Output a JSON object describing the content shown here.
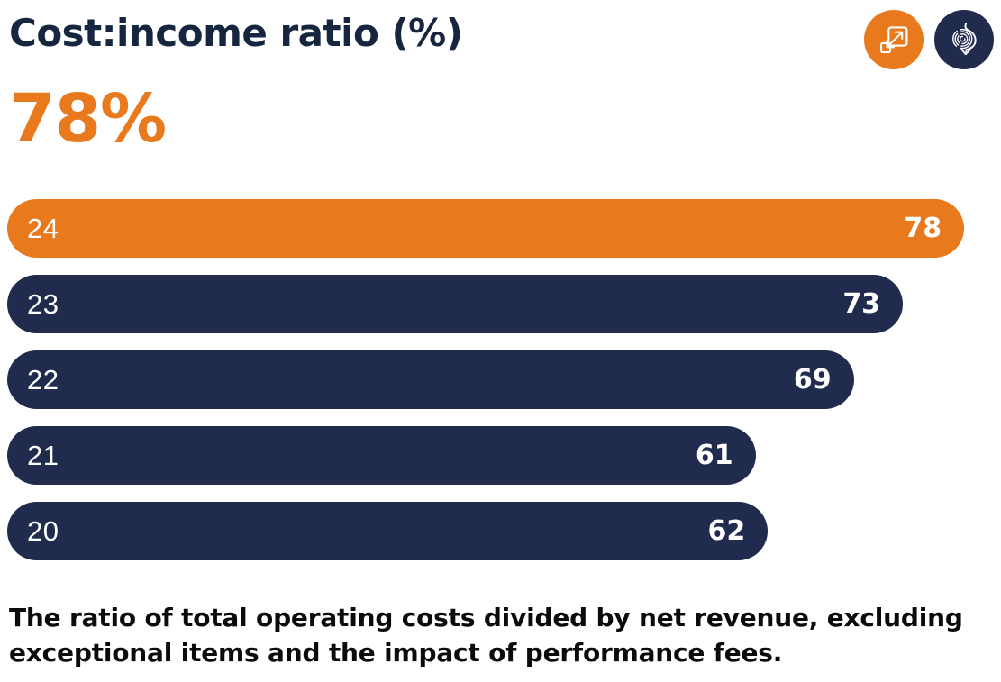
{
  "header": {
    "title": "Cost:income ratio (%)",
    "headline_value": "78%"
  },
  "colors": {
    "accent": "#E8791D",
    "primary": "#202B4D",
    "title": "#16263F",
    "text": "#0B0B0C",
    "bar_text": "#FFFFFF"
  },
  "chart_data": {
    "type": "bar",
    "orientation": "horizontal",
    "title": "Cost:income ratio (%)",
    "categories": [
      "24",
      "23",
      "22",
      "21",
      "20"
    ],
    "values": [
      78,
      73,
      69,
      61,
      62
    ],
    "highlight_category": "24",
    "value_labels_shown": true,
    "axes_hidden": true,
    "grid": false,
    "xlim": [
      0,
      80
    ]
  },
  "footnote": "The ratio of total operating costs divided by net revenue, excluding exceptional items and the impact of performance fees."
}
